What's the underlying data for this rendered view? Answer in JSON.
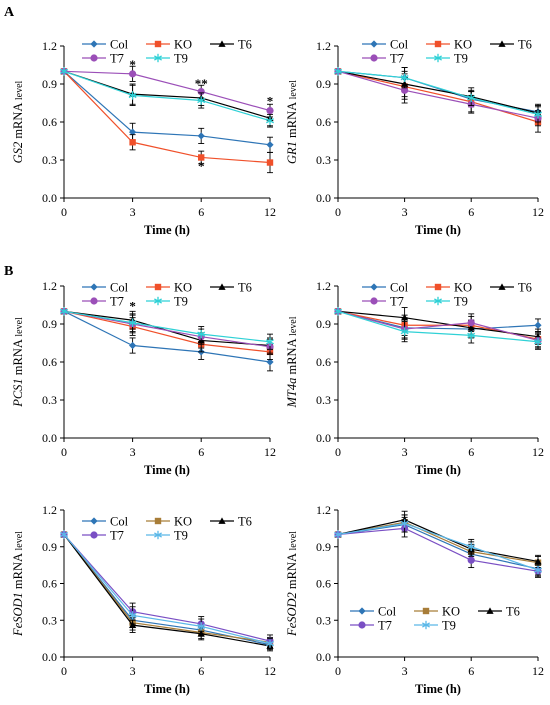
{
  "figure": {
    "panel_labels": [
      "A",
      "B"
    ],
    "series_colors": {
      "Col": "#2E75B6",
      "KO": "#F0502A",
      "T6": "#000000",
      "T7": "#9B4FB8",
      "T9": "#2FD1D6"
    },
    "series_colors_bottom": {
      "Col": "#2E75B6",
      "KO": "#A87D38",
      "T6": "#000000",
      "T7": "#7A4FC4",
      "T9": "#5BB8E8"
    },
    "markers": {
      "Col": "diamond",
      "KO": "square",
      "T6": "triangle",
      "T7": "circle",
      "T9": "asterisk"
    }
  },
  "chart_data": [
    {
      "type": "line",
      "panel": "A",
      "gene": "GS2",
      "ylabel_gene": "GS2",
      "ylabel_rest": " mRNA ",
      "ylabel_small": "level",
      "xlabel": "Time  (h)",
      "categories": [
        "0",
        "3",
        "6",
        "12"
      ],
      "yticks": [
        "0.0",
        "0.3",
        "0.6",
        "0.9",
        "1.2"
      ],
      "ylim": [
        0,
        1.2
      ],
      "legend": [
        "Col",
        "KO",
        "T6",
        "T7",
        "T9"
      ],
      "series": [
        {
          "name": "Col",
          "values": [
            1.0,
            0.52,
            0.49,
            0.42
          ],
          "err": [
            0,
            0.07,
            0.06,
            0.06
          ]
        },
        {
          "name": "KO",
          "values": [
            1.0,
            0.44,
            0.32,
            0.28
          ],
          "err": [
            0,
            0.06,
            0.05,
            0.08
          ]
        },
        {
          "name": "T6",
          "values": [
            1.0,
            0.82,
            0.79,
            0.63
          ],
          "err": [
            0,
            0.08,
            0.06,
            0.06
          ]
        },
        {
          "name": "T7",
          "values": [
            1.0,
            0.98,
            0.84,
            0.69
          ],
          "err": [
            0,
            0.06,
            0.05,
            0.05
          ]
        },
        {
          "name": "T9",
          "values": [
            1.0,
            0.81,
            0.77,
            0.61
          ],
          "err": [
            0,
            0.08,
            0.06,
            0.05
          ]
        }
      ],
      "annotations": [
        {
          "x": "3",
          "y": 1.05,
          "text": "*"
        },
        {
          "x": "6",
          "y": 0.9,
          "text": "**"
        },
        {
          "x": "6",
          "y": 0.25,
          "text": "*"
        },
        {
          "x": "12",
          "y": 0.76,
          "text": "*"
        }
      ]
    },
    {
      "type": "line",
      "panel": "A",
      "gene": "GR1",
      "ylabel_gene": "GR1",
      "ylabel_rest": " mRNA ",
      "ylabel_small": "level",
      "xlabel": "Time  (h)",
      "categories": [
        "0",
        "3",
        "6",
        "12"
      ],
      "yticks": [
        "0.0",
        "0.3",
        "0.6",
        "0.9",
        "1.2"
      ],
      "ylim": [
        0,
        1.2
      ],
      "legend": [
        "Col",
        "KO",
        "T6",
        "T7",
        "T9"
      ],
      "series": [
        {
          "name": "Col",
          "values": [
            1.0,
            0.95,
            0.78,
            0.68
          ],
          "err": [
            0,
            0.08,
            0.06,
            0.06
          ]
        },
        {
          "name": "KO",
          "values": [
            1.0,
            0.88,
            0.76,
            0.6
          ],
          "err": [
            0,
            0.1,
            0.08,
            0.08
          ]
        },
        {
          "name": "T6",
          "values": [
            1.0,
            0.9,
            0.8,
            0.67
          ],
          "err": [
            0,
            0.1,
            0.07,
            0.06
          ]
        },
        {
          "name": "T7",
          "values": [
            1.0,
            0.85,
            0.74,
            0.63
          ],
          "err": [
            0,
            0.1,
            0.07,
            0.06
          ]
        },
        {
          "name": "T9",
          "values": [
            1.0,
            0.95,
            0.79,
            0.66
          ],
          "err": [
            0,
            0.08,
            0.06,
            0.06
          ]
        }
      ],
      "annotations": []
    },
    {
      "type": "line",
      "panel": "B",
      "gene": "PCS1",
      "ylabel_gene": "PCS1",
      "ylabel_rest": " mRNA ",
      "ylabel_small": "level",
      "xlabel": "Time  (h)",
      "categories": [
        "0",
        "3",
        "6",
        "12"
      ],
      "yticks": [
        "0.0",
        "0.3",
        "0.6",
        "0.9",
        "1.2"
      ],
      "ylim": [
        0,
        1.2
      ],
      "legend": [
        "Col",
        "KO",
        "T6",
        "T7",
        "T9"
      ],
      "series": [
        {
          "name": "Col",
          "values": [
            1.0,
            0.73,
            0.68,
            0.6
          ],
          "err": [
            0,
            0.06,
            0.06,
            0.07
          ]
        },
        {
          "name": "KO",
          "values": [
            1.0,
            0.88,
            0.74,
            0.68
          ],
          "err": [
            0,
            0.07,
            0.06,
            0.06
          ]
        },
        {
          "name": "T6",
          "values": [
            1.0,
            0.93,
            0.77,
            0.73
          ],
          "err": [
            0,
            0.07,
            0.06,
            0.06
          ]
        },
        {
          "name": "T7",
          "values": [
            1.0,
            0.9,
            0.8,
            0.72
          ],
          "err": [
            0,
            0.07,
            0.06,
            0.06
          ]
        },
        {
          "name": "T9",
          "values": [
            1.0,
            0.91,
            0.82,
            0.76
          ],
          "err": [
            0,
            0.07,
            0.06,
            0.06
          ]
        }
      ],
      "annotations": [
        {
          "x": "3",
          "y": 1.04,
          "text": "*"
        }
      ]
    },
    {
      "type": "line",
      "panel": "B",
      "gene": "MT4a",
      "ylabel_gene": "MT4a",
      "ylabel_rest": " mRNA ",
      "ylabel_small": "level",
      "xlabel": "Time  (h)",
      "categories": [
        "0",
        "3",
        "6",
        "12"
      ],
      "yticks": [
        "0.0",
        "0.3",
        "0.6",
        "0.9",
        "1.2"
      ],
      "ylim": [
        0,
        1.2
      ],
      "legend": [
        "Col",
        "KO",
        "T6",
        "T7",
        "T9"
      ],
      "series": [
        {
          "name": "Col",
          "values": [
            1.0,
            0.87,
            0.86,
            0.89
          ],
          "err": [
            0,
            0.08,
            0.07,
            0.05
          ]
        },
        {
          "name": "KO",
          "values": [
            1.0,
            0.89,
            0.89,
            0.78
          ],
          "err": [
            0,
            0.08,
            0.07,
            0.06
          ]
        },
        {
          "name": "T6",
          "values": [
            1.0,
            0.95,
            0.87,
            0.8
          ],
          "err": [
            0,
            0.08,
            0.06,
            0.06
          ]
        },
        {
          "name": "T7",
          "values": [
            1.0,
            0.86,
            0.91,
            0.77
          ],
          "err": [
            0,
            0.08,
            0.07,
            0.06
          ]
        },
        {
          "name": "T9",
          "values": [
            1.0,
            0.84,
            0.81,
            0.76
          ],
          "err": [
            0,
            0.08,
            0.06,
            0.06
          ]
        }
      ],
      "annotations": []
    },
    {
      "type": "line",
      "panel": "B",
      "gene": "FeSOD1",
      "ylabel_gene": "FeSOD1",
      "ylabel_rest": " mRNA ",
      "ylabel_small": "level",
      "xlabel": "Time  (h)",
      "categories": [
        "0",
        "3",
        "6",
        "12"
      ],
      "yticks": [
        "0.0",
        "0.3",
        "0.6",
        "0.9",
        "1.2"
      ],
      "ylim": [
        0,
        1.2
      ],
      "legend": [
        "Col",
        "KO",
        "T6",
        "T7",
        "T9"
      ],
      "palette": "bottom",
      "series": [
        {
          "name": "Col",
          "values": [
            1.0,
            0.3,
            0.22,
            0.1
          ],
          "err": [
            0,
            0.06,
            0.05,
            0.04
          ]
        },
        {
          "name": "KO",
          "values": [
            1.0,
            0.28,
            0.2,
            0.12
          ],
          "err": [
            0,
            0.06,
            0.05,
            0.04
          ]
        },
        {
          "name": "T6",
          "values": [
            1.0,
            0.26,
            0.19,
            0.09
          ],
          "err": [
            0,
            0.06,
            0.05,
            0.04
          ]
        },
        {
          "name": "T7",
          "values": [
            1.0,
            0.37,
            0.27,
            0.13
          ],
          "err": [
            0,
            0.07,
            0.06,
            0.05
          ]
        },
        {
          "name": "T9",
          "values": [
            1.0,
            0.34,
            0.25,
            0.11
          ],
          "err": [
            0,
            0.07,
            0.06,
            0.04
          ]
        }
      ],
      "annotations": []
    },
    {
      "type": "line",
      "panel": "B",
      "gene": "FeSOD2",
      "ylabel_gene": "FeSOD2",
      "ylabel_rest": " mRNA ",
      "ylabel_small": "level",
      "xlabel": "Time  (h)",
      "categories": [
        "0",
        "3",
        "6",
        "12"
      ],
      "yticks": [
        "0.0",
        "0.3",
        "0.6",
        "0.9",
        "1.2"
      ],
      "ylim": [
        0,
        1.2
      ],
      "legend": [
        "Col",
        "KO",
        "T6",
        "T7",
        "T9"
      ],
      "legend_position": "bottom",
      "palette": "bottom",
      "series": [
        {
          "name": "Col",
          "values": [
            1.0,
            1.08,
            0.84,
            0.72
          ],
          "err": [
            0,
            0.06,
            0.06,
            0.05
          ]
        },
        {
          "name": "KO",
          "values": [
            1.0,
            1.1,
            0.86,
            0.77
          ],
          "err": [
            0,
            0.06,
            0.06,
            0.05
          ]
        },
        {
          "name": "T6",
          "values": [
            1.0,
            1.12,
            0.88,
            0.78
          ],
          "err": [
            0,
            0.07,
            0.06,
            0.05
          ]
        },
        {
          "name": "T7",
          "values": [
            1.0,
            1.05,
            0.79,
            0.7
          ],
          "err": [
            0,
            0.07,
            0.06,
            0.05
          ]
        },
        {
          "name": "T9",
          "values": [
            1.0,
            1.09,
            0.9,
            0.71
          ],
          "err": [
            0,
            0.07,
            0.06,
            0.05
          ]
        }
      ],
      "annotations": []
    }
  ]
}
